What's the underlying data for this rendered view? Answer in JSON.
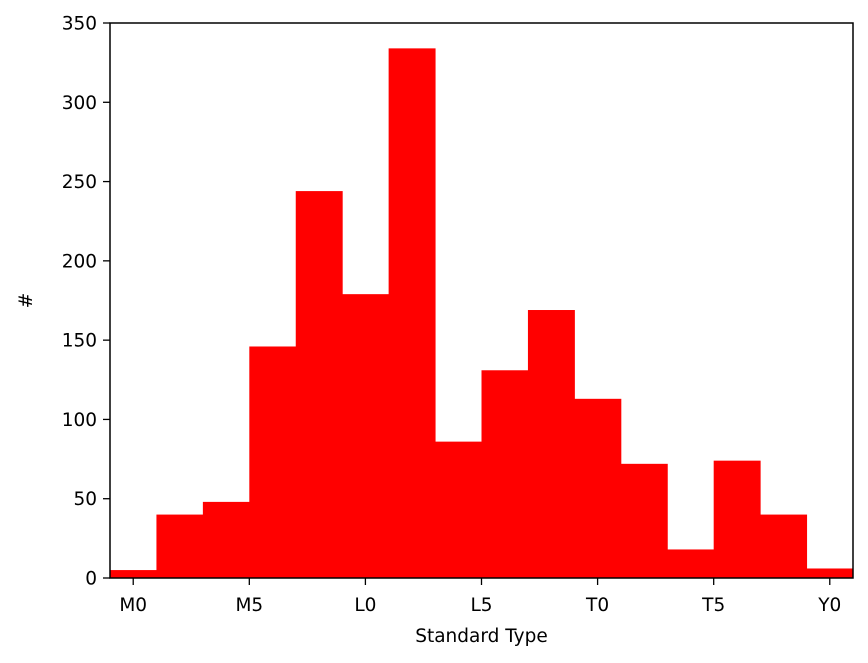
{
  "chart_data": {
    "type": "bar",
    "xlabel": "Standard Type",
    "ylabel": "#",
    "color": "#ff0000",
    "xlim": [
      -1,
      31
    ],
    "ylim": [
      0,
      350
    ],
    "x_ticks": [
      {
        "value": 0,
        "label": "M0"
      },
      {
        "value": 5,
        "label": "M5"
      },
      {
        "value": 10,
        "label": "L0"
      },
      {
        "value": 15,
        "label": "L5"
      },
      {
        "value": 20,
        "label": "T0"
      },
      {
        "value": 25,
        "label": "T5"
      },
      {
        "value": 30,
        "label": "Y0"
      }
    ],
    "y_ticks": [
      0,
      50,
      100,
      150,
      200,
      250,
      300,
      350
    ],
    "bin_edges": [
      -1,
      1,
      3,
      5,
      7,
      9,
      11,
      13,
      15,
      17,
      19,
      21,
      23,
      25,
      27,
      29,
      31
    ],
    "values": [
      5,
      40,
      48,
      146,
      244,
      179,
      334,
      86,
      131,
      169,
      113,
      72,
      18,
      74,
      40,
      6
    ],
    "grid": false
  }
}
